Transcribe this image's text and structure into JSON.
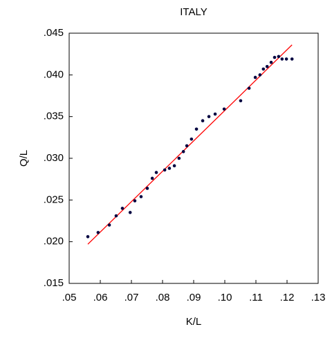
{
  "chart_data": {
    "type": "scatter",
    "title": "ITALY",
    "xlabel": "K/L",
    "ylabel": "Q/L",
    "series": [
      {
        "color": "#000040",
        "x": [
          0.056,
          0.0593,
          0.0629,
          0.0651,
          0.0671,
          0.0696,
          0.0711,
          0.0731,
          0.0751,
          0.0767,
          0.078,
          0.0807,
          0.0822,
          0.0838,
          0.0853,
          0.0867,
          0.0878,
          0.0893,
          0.0909,
          0.0929,
          0.0949,
          0.0969,
          0.0998,
          0.1051,
          0.1078,
          0.1098,
          0.1113,
          0.1124,
          0.1136,
          0.1149,
          0.116,
          0.1173,
          0.1184,
          0.1198,
          0.1216
        ],
        "values": [
          0.0206,
          0.0211,
          0.022,
          0.0231,
          0.024,
          0.0235,
          0.0249,
          0.0254,
          0.0264,
          0.0276,
          0.0283,
          0.0286,
          0.0288,
          0.0291,
          0.03,
          0.0308,
          0.0315,
          0.0323,
          0.0335,
          0.0345,
          0.035,
          0.0353,
          0.0359,
          0.0369,
          0.0384,
          0.0397,
          0.04,
          0.0407,
          0.041,
          0.0415,
          0.0421,
          0.0422,
          0.0419,
          0.0419,
          0.0419
        ]
      }
    ],
    "fit_line": {
      "color": "#ff0000",
      "x": [
        0.056,
        0.1216
      ],
      "values": [
        0.0197,
        0.0436
      ]
    },
    "xlim": [
      0.05,
      0.13
    ],
    "xticks": [
      {
        "value": 0.05,
        "label": ".05"
      },
      {
        "value": 0.06,
        "label": ".06"
      },
      {
        "value": 0.07,
        "label": ".07"
      },
      {
        "value": 0.08,
        "label": ".08"
      },
      {
        "value": 0.09,
        "label": ".09"
      },
      {
        "value": 0.1,
        "label": ".10"
      },
      {
        "value": 0.11,
        "label": ".11"
      },
      {
        "value": 0.12,
        "label": ".12"
      },
      {
        "value": 0.13,
        "label": ".13"
      }
    ],
    "ylim": [
      0.015,
      0.045
    ],
    "yticks": [
      {
        "value": 0.015,
        "label": ".015"
      },
      {
        "value": 0.02,
        "label": ".020"
      },
      {
        "value": 0.025,
        "label": ".025"
      },
      {
        "value": 0.03,
        "label": ".030"
      },
      {
        "value": 0.035,
        "label": ".035"
      },
      {
        "value": 0.04,
        "label": ".040"
      },
      {
        "value": 0.045,
        "label": ".045"
      }
    ]
  }
}
